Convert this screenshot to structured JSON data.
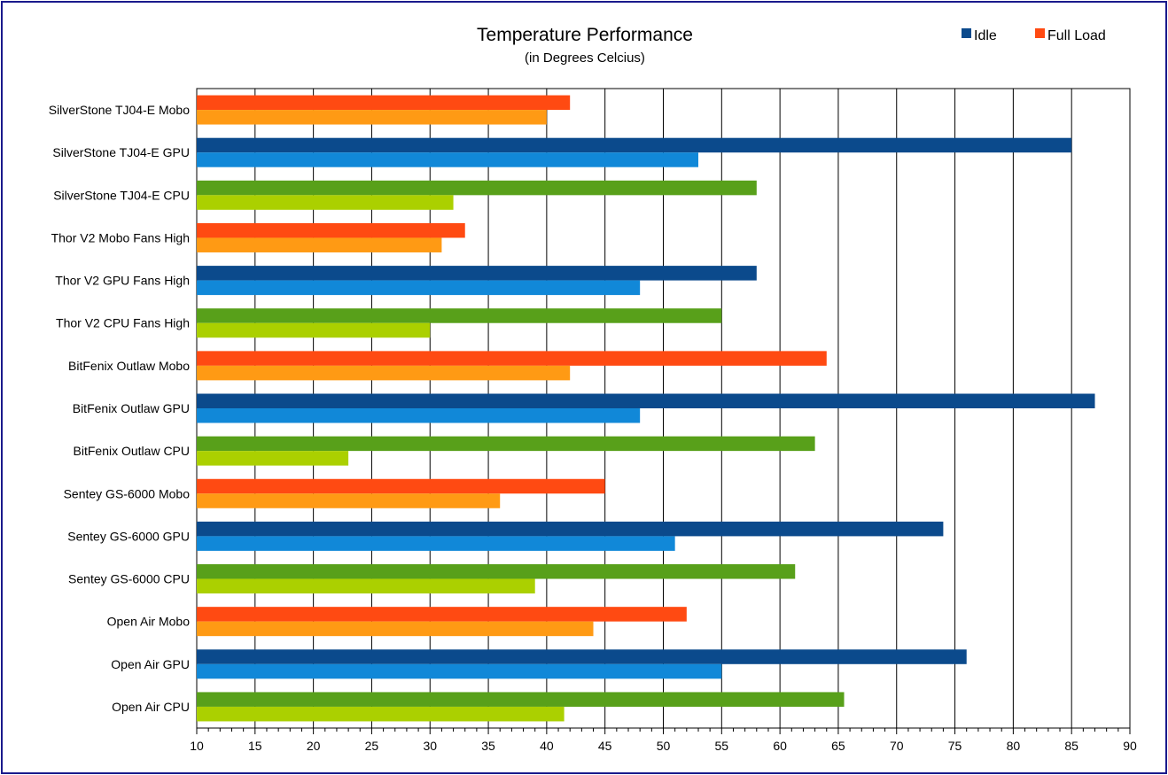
{
  "chart_data": {
    "type": "bar",
    "orientation": "horizontal",
    "title": "Temperature Performance",
    "subtitle": "(in Degrees Celcius)",
    "xlabel": "",
    "ylabel": "",
    "xlim": [
      10,
      90
    ],
    "major_ticks": [
      10,
      15,
      20,
      25,
      30,
      35,
      40,
      45,
      50,
      55,
      60,
      65,
      70,
      75,
      80,
      85,
      90
    ],
    "minor_tick_step": 1,
    "grid": true,
    "legend": {
      "position": "top-right",
      "entries": [
        {
          "label": "Idle",
          "color": "#0b4a8c"
        },
        {
          "label": "Full Load",
          "color": "#ff4a12"
        }
      ]
    },
    "categories": [
      {
        "label": "SilverStone TJ04-E Mobo",
        "full_load": 42,
        "idle": 40,
        "full_color": "#ff4a12",
        "idle_color": "#ff9a14"
      },
      {
        "label": "SilverStone TJ04-E GPU",
        "full_load": 85,
        "idle": 53,
        "full_color": "#0b4a8c",
        "idle_color": "#1188d8"
      },
      {
        "label": "SilverStone TJ04-E CPU",
        "full_load": 58,
        "idle": 32,
        "full_color": "#58a01a",
        "idle_color": "#abd000"
      },
      {
        "label": "Thor V2 Mobo Fans High",
        "full_load": 33,
        "idle": 31,
        "full_color": "#ff4a12",
        "idle_color": "#ff9a14"
      },
      {
        "label": "Thor V2 GPU Fans High",
        "full_load": 58,
        "idle": 48,
        "full_color": "#0b4a8c",
        "idle_color": "#1188d8"
      },
      {
        "label": "Thor V2 CPU Fans High",
        "full_load": 55,
        "idle": 30,
        "full_color": "#58a01a",
        "idle_color": "#abd000"
      },
      {
        "label": "BitFenix Outlaw Mobo",
        "full_load": 64,
        "idle": 42,
        "full_color": "#ff4a12",
        "idle_color": "#ff9a14"
      },
      {
        "label": "BitFenix Outlaw GPU",
        "full_load": 87,
        "idle": 48,
        "full_color": "#0b4a8c",
        "idle_color": "#1188d8"
      },
      {
        "label": "BitFenix Outlaw CPU",
        "full_load": 63,
        "idle": 23,
        "full_color": "#58a01a",
        "idle_color": "#abd000"
      },
      {
        "label": "Sentey GS-6000 Mobo",
        "full_load": 45,
        "idle": 36,
        "full_color": "#ff4a12",
        "idle_color": "#ff9a14"
      },
      {
        "label": "Sentey GS-6000 GPU",
        "full_load": 74,
        "idle": 51,
        "full_color": "#0b4a8c",
        "idle_color": "#1188d8"
      },
      {
        "label": "Sentey GS-6000 CPU",
        "full_load": 61.3,
        "idle": 39,
        "full_color": "#58a01a",
        "idle_color": "#abd000"
      },
      {
        "label": "Open Air Mobo",
        "full_load": 52,
        "idle": 44,
        "full_color": "#ff4a12",
        "idle_color": "#ff9a14"
      },
      {
        "label": "Open Air GPU",
        "full_load": 76,
        "idle": 55,
        "full_color": "#0b4a8c",
        "idle_color": "#1188d8"
      },
      {
        "label": "Open Air CPU",
        "full_load": 65.5,
        "idle": 41.5,
        "full_color": "#58a01a",
        "idle_color": "#abd000"
      }
    ]
  }
}
